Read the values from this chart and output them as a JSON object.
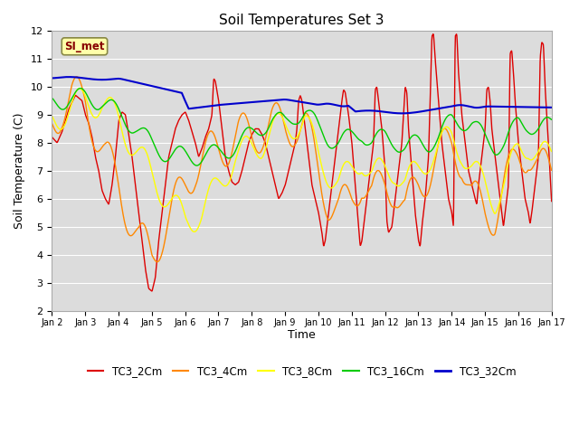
{
  "title": "Soil Temperatures Set 3",
  "xlabel": "Time",
  "ylabel": "Soil Temperature (C)",
  "ylim": [
    2.0,
    12.0
  ],
  "yticks": [
    2.0,
    3.0,
    4.0,
    5.0,
    6.0,
    7.0,
    8.0,
    9.0,
    10.0,
    11.0,
    12.0
  ],
  "xtick_labels": [
    "Jan 2",
    "Jan 3",
    "Jan 4",
    "Jan 5",
    "Jan 6",
    "Jan 7",
    "Jan 8",
    "Jan 9",
    "Jan 10",
    "Jan 11",
    "Jan 12",
    "Jan 13",
    "Jan 14",
    "Jan 15",
    "Jan 16",
    "Jan 17"
  ],
  "plot_bg_color": "#dcdcdc",
  "series": {
    "TC3_2Cm": {
      "color": "#dd0000",
      "lw": 1.0
    },
    "TC3_4Cm": {
      "color": "#ff8800",
      "lw": 1.0
    },
    "TC3_8Cm": {
      "color": "#ffff00",
      "lw": 1.0
    },
    "TC3_16Cm": {
      "color": "#00cc00",
      "lw": 1.0
    },
    "TC3_32Cm": {
      "color": "#0000cc",
      "lw": 1.5
    }
  },
  "watermark": "SI_met",
  "watermark_color": "#880000",
  "watermark_bg": "#ffffaa",
  "watermark_border": "#888844"
}
